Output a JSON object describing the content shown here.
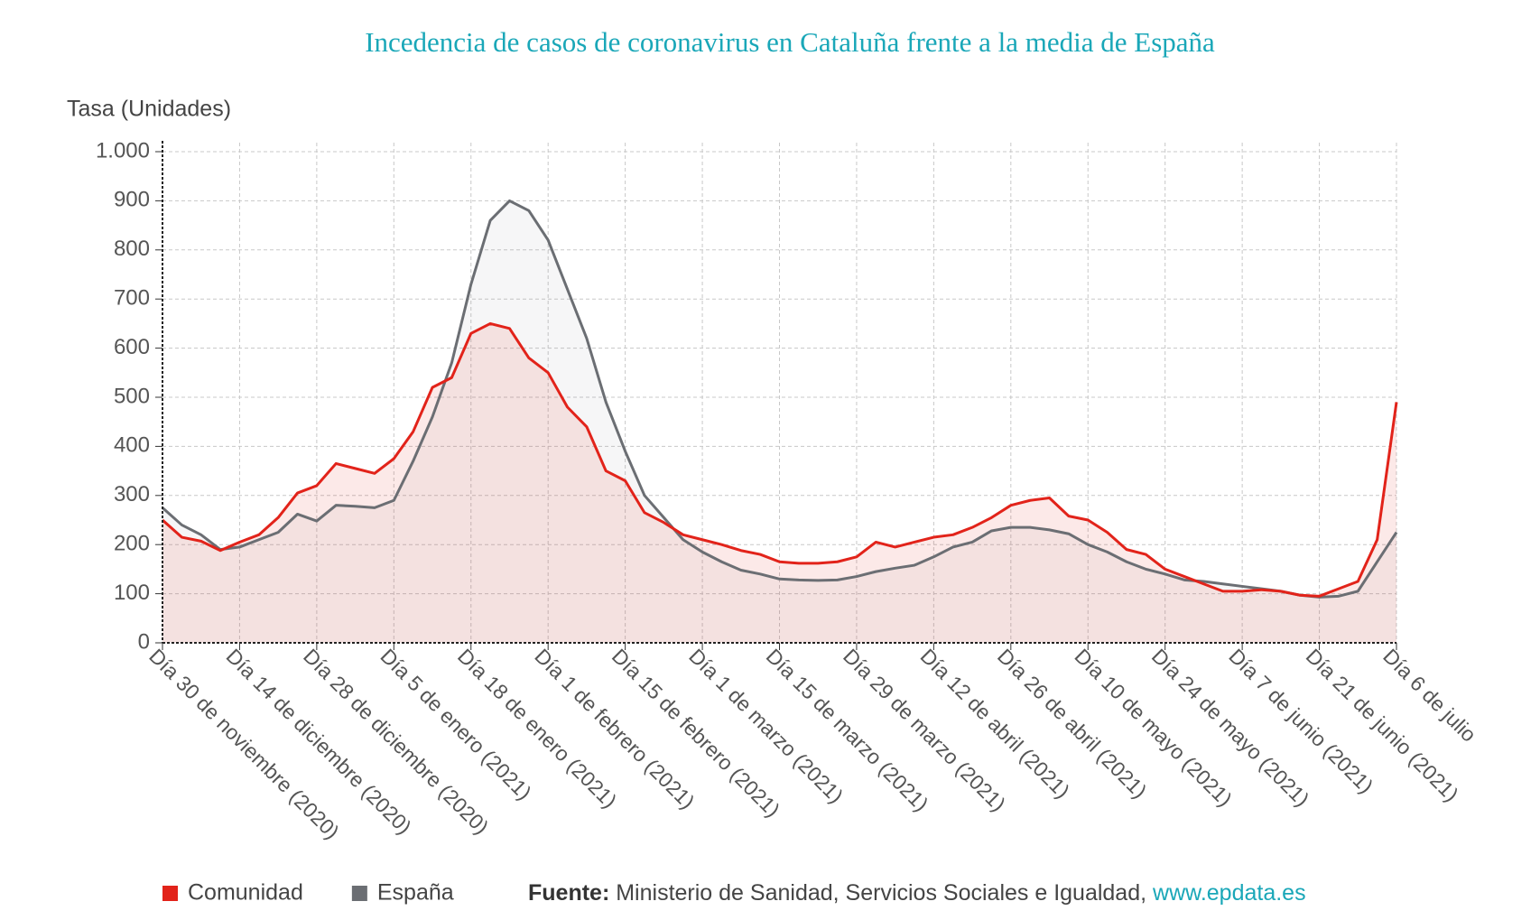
{
  "chart_data": {
    "type": "line",
    "title": "Incedencia de casos de coronavirus en Cataluña frente a la media de España",
    "y_label": "Tasa (Unidades)",
    "categories": [
      "Día 30 de noviembre (2020)",
      null,
      null,
      null,
      "Día 14 de diciembre (2020)",
      null,
      null,
      null,
      "Día 28 de diciembre (2020)",
      null,
      null,
      null,
      "Día 5 de enero (2021)",
      null,
      null,
      null,
      "Día 18 de enero (2021)",
      null,
      null,
      null,
      "Día 1 de febrero (2021)",
      null,
      null,
      null,
      "Día 15 de febrero (2021)",
      null,
      null,
      null,
      "Día 1 de marzo (2021)",
      null,
      null,
      null,
      "Día 15 de marzo (2021)",
      null,
      null,
      null,
      "Día 29 de marzo (2021)",
      null,
      null,
      null,
      "Día 12 de abril (2021)",
      null,
      null,
      null,
      "Día 26 de abril (2021)",
      null,
      null,
      null,
      "Día 10 de mayo (2021)",
      null,
      null,
      null,
      "Día 24 de mayo (2021)",
      null,
      null,
      null,
      "Día 7 de junio (2021)",
      null,
      null,
      null,
      "Día 21 de junio (2021)",
      null,
      null,
      null,
      "Día 6 de julio"
    ],
    "series": [
      {
        "name": "Comunidad",
        "color": "#e2231a",
        "values": [
          250,
          215,
          207,
          188,
          205,
          220,
          255,
          305,
          320,
          365,
          355,
          345,
          375,
          430,
          520,
          540,
          630,
          650,
          640,
          580,
          550,
          480,
          440,
          350,
          330,
          265,
          245,
          220,
          210,
          200,
          188,
          180,
          165,
          162,
          162,
          165,
          175,
          205,
          195,
          205,
          215,
          220,
          235,
          255,
          280,
          290,
          295,
          258,
          250,
          225,
          190,
          180,
          150,
          135,
          120,
          105,
          105,
          108,
          105,
          97,
          95,
          110,
          125,
          210,
          490
        ]
      },
      {
        "name": "España",
        "color": "#6b6e73",
        "values": [
          275,
          240,
          220,
          190,
          195,
          210,
          225,
          262,
          248,
          280,
          278,
          275,
          290,
          370,
          460,
          570,
          730,
          860,
          900,
          880,
          820,
          720,
          620,
          490,
          390,
          300,
          255,
          210,
          185,
          165,
          148,
          140,
          130,
          128,
          127,
          128,
          135,
          145,
          152,
          158,
          175,
          195,
          205,
          228,
          235,
          235,
          230,
          222,
          200,
          185,
          165,
          150,
          140,
          128,
          125,
          120,
          115,
          110,
          105,
          97,
          93,
          95,
          105,
          165,
          225
        ]
      }
    ],
    "ylim": [
      0,
      1000
    ],
    "yticks": [
      0,
      100,
      200,
      300,
      400,
      500,
      600,
      700,
      800,
      900,
      {
        "value": 1000,
        "label": "1.000"
      }
    ],
    "grid": true,
    "source": {
      "label": "Fuente:",
      "text": "Ministerio de Sanidad, Servicios Sociales e Igualdad,",
      "link": "www.epdata.es"
    }
  }
}
